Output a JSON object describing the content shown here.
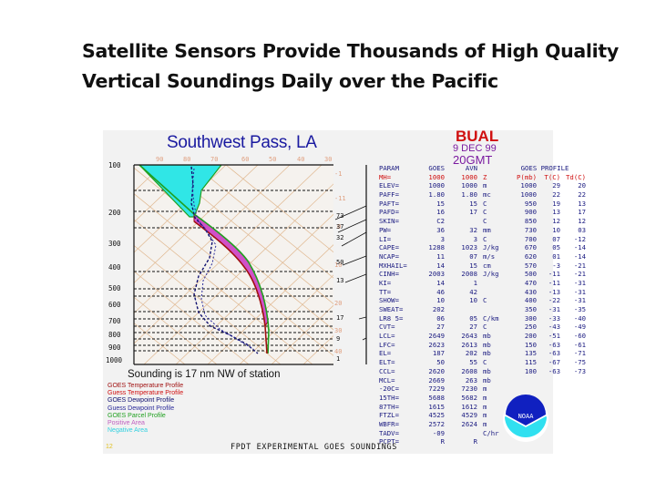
{
  "slide": {
    "title": "Satellite Sensors Provide Thousands of High Quality Vertical Soundings Daily over the Pacific"
  },
  "sounding": {
    "station": "Southwest Pass, LA",
    "site_code": "BUAL",
    "date": "9 DEC 99",
    "time": "20GMT",
    "note": "Sounding is 17 nm NW of station",
    "footer": "FPDT EXPERIMENTAL GOES SOUNDINGS",
    "corner_mark": "12"
  },
  "chart_data": {
    "type": "skew-t",
    "title": "Southwest Pass, LA",
    "pressure_ticks": [
      "100",
      "200",
      "300",
      "400",
      "500",
      "600",
      "700",
      "800",
      "900",
      "1000"
    ],
    "temp_ticks_top": [
      "90",
      "80",
      "70",
      "60",
      "50",
      "40",
      "30"
    ],
    "mixing_ratio_labels": [
      "-1",
      "-11",
      "0",
      "10",
      "20",
      "30",
      "40"
    ],
    "wind_labels": [
      "73",
      "37",
      "32",
      "50",
      "13",
      "17",
      "9",
      "1"
    ],
    "series": [
      {
        "name": "GOES Temperature Profile",
        "color": "#a01010"
      },
      {
        "name": "Guess Temperature Profile",
        "color": "#d01010"
      },
      {
        "name": "GOES Dewpoint Profile",
        "color": "#101070"
      },
      {
        "name": "Guess Dewpoint Profile",
        "color": "#2a2a9a"
      },
      {
        "name": "GOES Parcel Profile",
        "color": "#20a020"
      },
      {
        "name": "Positive Area",
        "color": "#d050c8"
      },
      {
        "name": "Negative Area",
        "color": "#30e0e0"
      }
    ]
  },
  "legend": [
    {
      "label": "GOES Temperature Profile",
      "color": "#a01010"
    },
    {
      "label": "Guess Temperature Profile",
      "color": "#d01010"
    },
    {
      "label": "GOES Dewpoint Profile",
      "color": "#101070"
    },
    {
      "label": "Guess Dewpoint Profile",
      "color": "#2a2a9a"
    },
    {
      "label": "GOES Parcel Profile",
      "color": "#20a020"
    },
    {
      "label": "Positive Area",
      "color": "#c060c0"
    },
    {
      "label": "Negative Area",
      "color": "#30d0e0"
    }
  ],
  "params": {
    "headers": [
      "PARAM",
      "GOES",
      "AVN",
      ""
    ],
    "rows": [
      [
        "MH=",
        "1000",
        "1000",
        "Z"
      ],
      [
        "ELEV=",
        "1000",
        "1000",
        "m"
      ],
      [
        "PAFF=",
        "1.80",
        "1.80",
        "mc"
      ],
      [
        "PAFT=",
        "15",
        "15",
        "C"
      ],
      [
        "PAFD=",
        "16",
        "17",
        "C"
      ],
      [
        "SKIN=",
        "C2",
        "",
        "C"
      ],
      [
        "PW=",
        "36",
        "32",
        "mm"
      ],
      [
        "LI=",
        "3",
        "3",
        "C"
      ],
      [
        "CAPE=",
        "1288",
        "1023",
        "J/kg"
      ],
      [
        "NCAP=",
        "11",
        "07",
        "m/s"
      ],
      [
        "MXHAIL=",
        "14",
        "15",
        "cm"
      ],
      [
        "CINH=",
        "2003",
        "2008",
        "J/kg"
      ],
      [
        "KI=",
        "14",
        "1",
        ""
      ],
      [
        "TT=",
        "46",
        "42",
        ""
      ],
      [
        "SHOW=",
        "10",
        "10",
        "C"
      ],
      [
        "SWEAT=",
        "202",
        "",
        ""
      ],
      [
        "LR8 5=",
        "06",
        "05",
        "C/km"
      ],
      [
        "CVT=",
        "27",
        "27",
        "C"
      ],
      [
        "LCL=",
        "2649",
        "2643",
        "mb"
      ],
      [
        "LFC=",
        "2623",
        "2613",
        "mb"
      ],
      [
        "EL=",
        "187",
        "202",
        "mb"
      ],
      [
        "ELT=",
        "50",
        "55",
        "C"
      ],
      [
        "CCL=",
        "2620",
        "2608",
        "mb"
      ],
      [
        "MCL=",
        "2669",
        "263",
        "mb"
      ],
      [
        "-20C=",
        "7229",
        "7230",
        "m"
      ],
      [
        "15TH=",
        "5688",
        "5682",
        "m"
      ],
      [
        "87TH=",
        "1615",
        "1612",
        "m"
      ],
      [
        "FTZL=",
        "4525",
        "4529",
        "m"
      ],
      [
        "WBFR=",
        "2572",
        "2624",
        "m"
      ],
      [
        "TADV=",
        "-09",
        "",
        "C/hr"
      ],
      [
        "PCPT=",
        "R",
        "R",
        ""
      ]
    ]
  },
  "profile": {
    "title": "GOES PROFILE",
    "headers": [
      "P(mb)",
      "T(C)",
      "Td(C)"
    ],
    "rows": [
      [
        "1000",
        "29",
        "20"
      ],
      [
        "1000",
        "22",
        "22"
      ],
      [
        "950",
        "19",
        "13"
      ],
      [
        "900",
        "13",
        "17"
      ],
      [
        "850",
        "12",
        "12"
      ],
      [
        "730",
        "10",
        "03"
      ],
      [
        "700",
        "07",
        "-12"
      ],
      [
        "670",
        "05",
        "-14"
      ],
      [
        "620",
        "01",
        "-14"
      ],
      [
        "570",
        "-3",
        "-21"
      ],
      [
        "500",
        "-11",
        "-21"
      ],
      [
        "470",
        "-11",
        "-31"
      ],
      [
        "430",
        "-13",
        "-31"
      ],
      [
        "400",
        "-22",
        "-31"
      ],
      [
        "350",
        "-31",
        "-35"
      ],
      [
        "300",
        "-33",
        "-40"
      ],
      [
        "250",
        "-43",
        "-49"
      ],
      [
        "200",
        "-51",
        "-60"
      ],
      [
        "150",
        "-63",
        "-61"
      ],
      [
        "135",
        "-63",
        "-71"
      ],
      [
        "115",
        "-67",
        "-75"
      ],
      [
        "100",
        "-63",
        "-73"
      ]
    ]
  },
  "logo": {
    "text": "NOAA"
  }
}
